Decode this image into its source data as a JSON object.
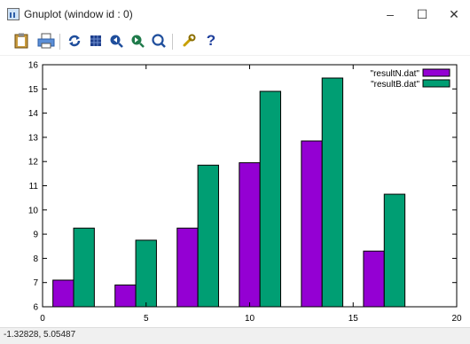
{
  "window": {
    "title": "Gnuplot (window id : 0)",
    "controls": {
      "minimize": "–",
      "maximize": "☐",
      "close": "✕"
    }
  },
  "toolbar": {
    "buttons": [
      {
        "icon": "clipboard-icon"
      },
      {
        "icon": "print-icon"
      },
      {
        "icon": "replot-icon"
      },
      {
        "icon": "grid-icon"
      },
      {
        "icon": "zoom-previous-icon"
      },
      {
        "icon": "zoom-next-icon"
      },
      {
        "icon": "unzoom-icon"
      },
      {
        "icon": "options-icon"
      },
      {
        "icon": "help-icon",
        "label": "?"
      }
    ]
  },
  "status": {
    "coordinates": "-1.32828,  5.05487"
  },
  "colors": {
    "resultN": "#9400d3",
    "resultB": "#009e73"
  },
  "chart_data": {
    "type": "bar",
    "xlim": [
      0,
      20
    ],
    "ylim": [
      6,
      16
    ],
    "xticks": [
      "0",
      "5",
      "10",
      "15",
      "20"
    ],
    "yticks": [
      "6",
      "7",
      "8",
      "9",
      "10",
      "11",
      "12",
      "13",
      "14",
      "15",
      "16"
    ],
    "legend_position": "top-right",
    "series": [
      {
        "name": "\"resultN.dat\"",
        "color": "#9400d3",
        "points": [
          [
            1,
            7.1
          ],
          [
            4,
            6.9
          ],
          [
            7,
            9.25
          ],
          [
            10,
            11.95
          ],
          [
            13,
            12.85
          ],
          [
            16,
            8.3
          ]
        ]
      },
      {
        "name": "\"resultB.dat\"",
        "color": "#009e73",
        "points": [
          [
            2,
            9.25
          ],
          [
            5,
            8.75
          ],
          [
            8,
            11.85
          ],
          [
            11,
            14.9
          ],
          [
            14,
            15.45
          ],
          [
            17,
            10.65
          ]
        ]
      }
    ]
  }
}
